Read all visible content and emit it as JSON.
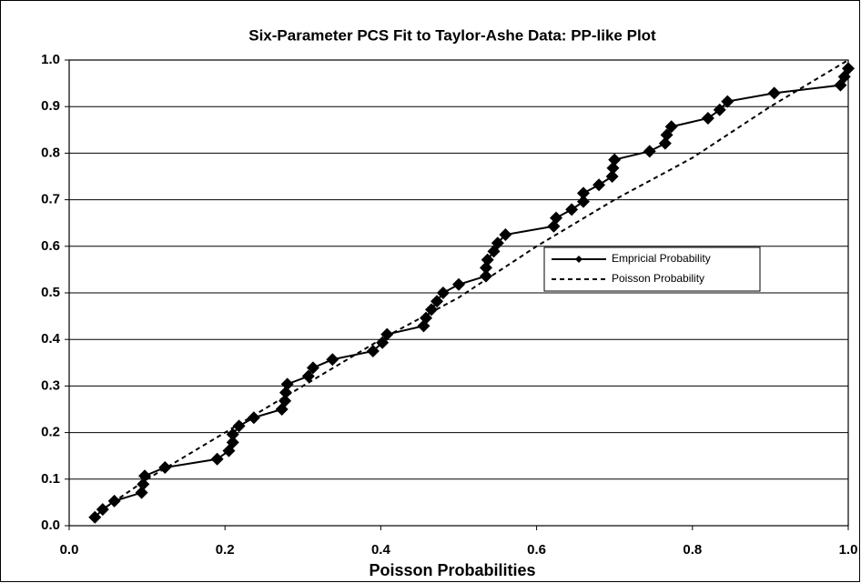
{
  "chart_data": {
    "type": "line",
    "title": "Six-Parameter PCS Fit to Taylor-Ashe Data: PP-like Plot",
    "xlabel": "Poisson Probabilities",
    "xlim": [
      0,
      1
    ],
    "ylim": [
      0,
      1
    ],
    "xticks": [
      {
        "value": 0,
        "label": "0.0"
      },
      0.2,
      0.4,
      0.6,
      0.8,
      {
        "value": 1,
        "label": "1.0"
      }
    ],
    "yticks": [
      {
        "value": 0,
        "label": "0.0"
      },
      0.1,
      0.2,
      0.3,
      0.4,
      0.5,
      0.6,
      0.7,
      0.8,
      0.9,
      {
        "value": 1,
        "label": "1.0"
      }
    ],
    "grid": true,
    "legend": "right",
    "series": [
      {
        "name": "Empricial Probability",
        "color": "#000000",
        "style": "solid",
        "marker": "diamond",
        "x": [
          0.033,
          0.043,
          0.058,
          0.093,
          0.095,
          0.097,
          0.123,
          0.19,
          0.205,
          0.21,
          0.21,
          0.218,
          0.237,
          0.273,
          0.277,
          0.278,
          0.28,
          0.307,
          0.313,
          0.338,
          0.39,
          0.402,
          0.408,
          0.455,
          0.458,
          0.465,
          0.472,
          0.48,
          0.5,
          0.535,
          0.535,
          0.537,
          0.545,
          0.55,
          0.56,
          0.622,
          0.625,
          0.645,
          0.66,
          0.66,
          0.68,
          0.697,
          0.698,
          0.7,
          0.745,
          0.765,
          0.767,
          0.773,
          0.82,
          0.835,
          0.845,
          0.905,
          0.99,
          0.995,
          1.0
        ],
        "values": [
          0.018,
          0.035,
          0.053,
          0.071,
          0.089,
          0.107,
          0.125,
          0.143,
          0.161,
          0.179,
          0.196,
          0.214,
          0.232,
          0.25,
          0.268,
          0.286,
          0.304,
          0.321,
          0.339,
          0.357,
          0.375,
          0.393,
          0.411,
          0.429,
          0.446,
          0.464,
          0.482,
          0.5,
          0.518,
          0.536,
          0.554,
          0.571,
          0.589,
          0.607,
          0.625,
          0.643,
          0.661,
          0.679,
          0.696,
          0.714,
          0.732,
          0.75,
          0.768,
          0.786,
          0.804,
          0.821,
          0.839,
          0.857,
          0.875,
          0.893,
          0.911,
          0.929,
          0.946,
          0.964,
          0.982
        ]
      },
      {
        "name": "Poisson Probability",
        "color": "#000000",
        "style": "dashed",
        "x": [
          0.03,
          0.1,
          0.2,
          0.3,
          0.4,
          0.5,
          0.6,
          0.7,
          0.8,
          0.9,
          1.0
        ],
        "values": [
          0.02,
          0.1,
          0.2,
          0.3,
          0.4,
          0.49,
          0.6,
          0.7,
          0.79,
          0.9,
          1.0
        ]
      }
    ]
  }
}
